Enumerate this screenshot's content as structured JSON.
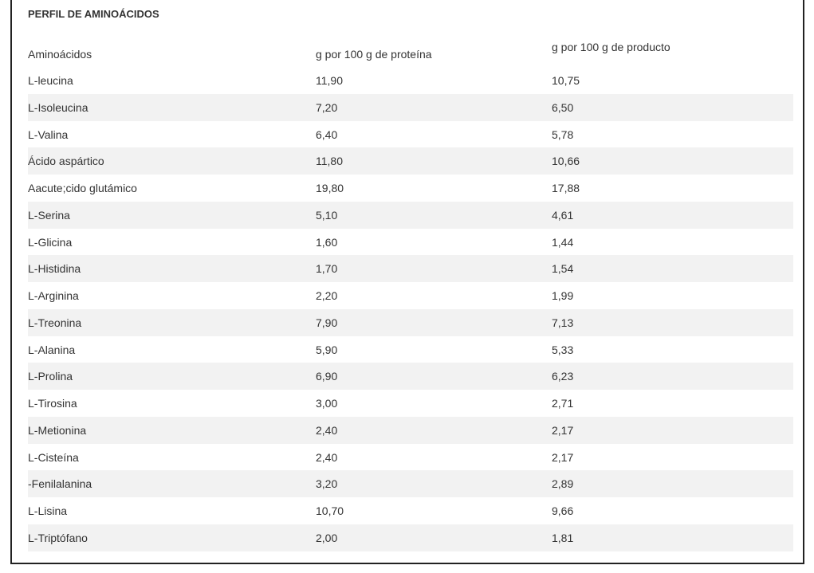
{
  "header": {
    "title": "PERFIL DE AMINOÁCIDOS"
  },
  "table": {
    "headers": [
      "Aminoácidos",
      "g por 100 g de proteína",
      "g por 100 g de producto"
    ],
    "rows": [
      [
        "L-leucina",
        "11,90",
        "10,75"
      ],
      [
        "L-Isoleucina",
        "7,20",
        "6,50"
      ],
      [
        "L-Valina",
        "6,40",
        "5,78"
      ],
      [
        "Ácido aspártico",
        "11,80",
        "10,66"
      ],
      [
        "Aacute;cido glutámico",
        "19,80",
        "17,88"
      ],
      [
        "L-Serina",
        "5,10",
        "4,61"
      ],
      [
        "L-Glicina",
        "1,60",
        "1,44"
      ],
      [
        "L-Histidina",
        "1,70",
        "1,54"
      ],
      [
        "L-Arginina",
        "2,20",
        "1,99"
      ],
      [
        "L-Treonina",
        "7,90",
        "7,13"
      ],
      [
        "L-Alanina",
        "5,90",
        "5,33"
      ],
      [
        "L-Prolina",
        "6,90",
        "6,23"
      ],
      [
        "L-Tirosina",
        "3,00",
        "2,71"
      ],
      [
        "L-Metionina",
        "2,40",
        "2,17"
      ],
      [
        "L-Cisteína",
        "2,40",
        "2,17"
      ],
      [
        "-Fenilalanina",
        "3,20",
        "2,89"
      ],
      [
        "L-Lisina",
        "10,70",
        "9,66"
      ],
      [
        "L-Triptófano",
        "2,00",
        "1,81"
      ]
    ]
  }
}
